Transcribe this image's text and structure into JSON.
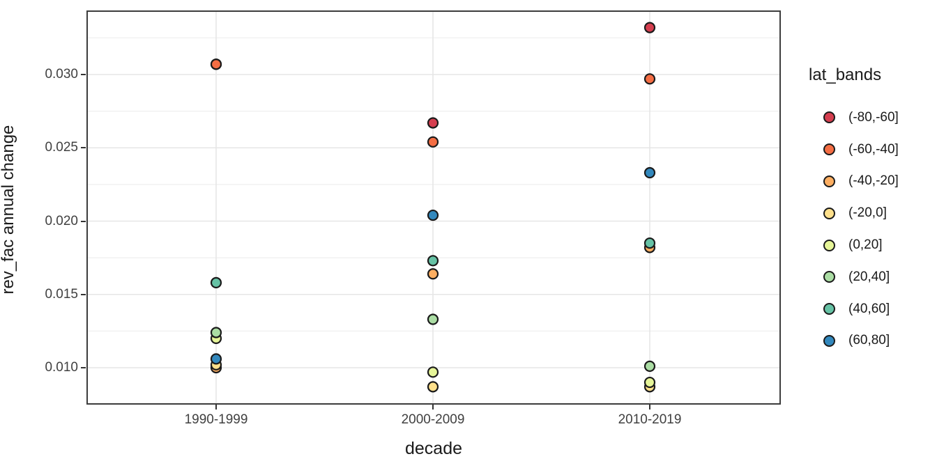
{
  "chart_data": {
    "type": "scatter",
    "title": "",
    "xlabel": "decade",
    "ylabel": "rev_fac annual change",
    "legend_title": "lat_bands",
    "legend_position": "right",
    "grid": true,
    "categories": [
      "1990-1999",
      "2000-2009",
      "2010-2019"
    ],
    "y_tick_labels": [
      "0.030",
      "0.025",
      "0.020",
      "0.015",
      "0.010"
    ],
    "y_ticks": [
      0.03,
      0.025,
      0.02,
      0.015,
      0.01
    ],
    "y_minor_ticks": [
      0.0325,
      0.0275,
      0.0225,
      0.0175,
      0.0125,
      0.0075
    ],
    "ylim": [
      0.0074,
      0.0344
    ],
    "point_outline_color": "#1a1a1a",
    "series": [
      {
        "name": "(-80,-60]",
        "color": "#D53E4F",
        "values": [
          0.0307,
          0.0267,
          0.0332
        ]
      },
      {
        "name": "(-60,-40]",
        "color": "#F46D43",
        "values": [
          0.0307,
          0.0254,
          0.0297
        ]
      },
      {
        "name": "(-40,-20]",
        "color": "#FDAE61",
        "values": [
          0.01,
          0.0164,
          0.0182
        ]
      },
      {
        "name": "(-20,0]",
        "color": "#FEE08B",
        "values": [
          0.0102,
          0.0087,
          0.0087
        ]
      },
      {
        "name": "(0,20]",
        "color": "#E6F598",
        "values": [
          0.012,
          0.0097,
          0.009
        ]
      },
      {
        "name": "(20,40]",
        "color": "#ABDDA4",
        "values": [
          0.0124,
          0.0133,
          0.0101
        ]
      },
      {
        "name": "(40,60]",
        "color": "#66C2A5",
        "values": [
          0.0158,
          0.0173,
          0.0185
        ]
      },
      {
        "name": "(60,80]",
        "color": "#3288BD",
        "values": [
          0.0106,
          0.0204,
          0.0233
        ]
      }
    ]
  }
}
